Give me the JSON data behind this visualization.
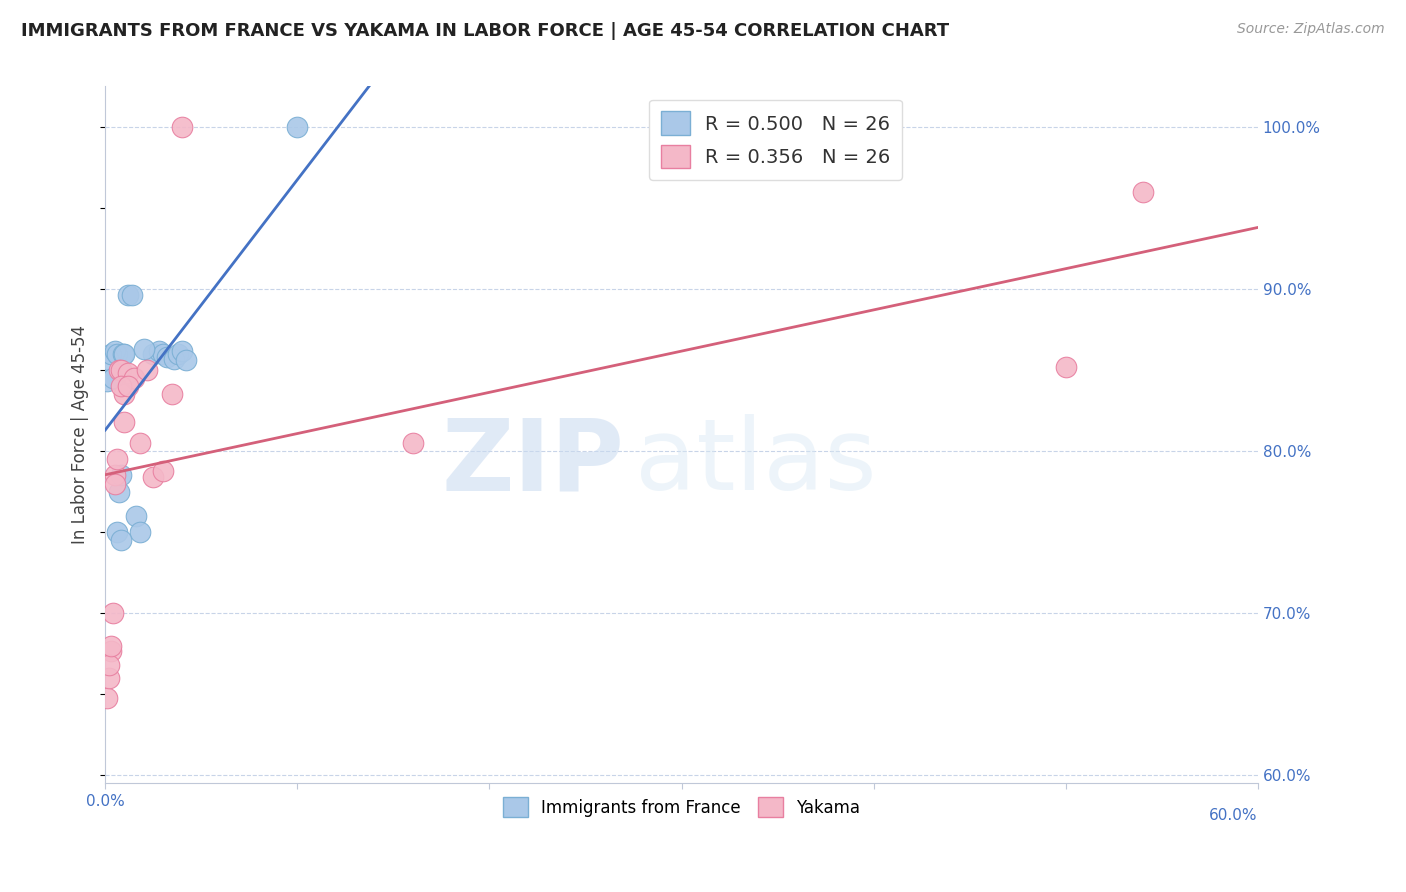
{
  "title": "IMMIGRANTS FROM FRANCE VS YAKAMA IN LABOR FORCE | AGE 45-54 CORRELATION CHART",
  "source": "Source: ZipAtlas.com",
  "ylabel": "In Labor Force | Age 45-54",
  "france_R": 0.5,
  "france_N": 26,
  "yakama_R": 0.356,
  "yakama_N": 26,
  "france_color": "#aac8e8",
  "france_edge": "#7bafd4",
  "france_line": "#4472c4",
  "yakama_color": "#f4b8c8",
  "yakama_edge": "#e87fa0",
  "yakama_line": "#d4607a",
  "watermark_zip": "ZIP",
  "watermark_atlas": "atlas",
  "background": "#ffffff",
  "grid_color": "#c8d4e8",
  "xlim": [
    0.0,
    0.6
  ],
  "ylim": [
    0.595,
    1.025
  ],
  "xticks": [
    0.0,
    0.1,
    0.2,
    0.3,
    0.4,
    0.5,
    0.6
  ],
  "yticks_right": [
    0.6,
    0.7,
    0.8,
    0.9,
    1.0
  ],
  "ytick_labels": [
    "60.0%",
    "70.0%",
    "80.0%",
    "90.0%",
    "100.0%"
  ],
  "france_x": [
    0.001,
    0.002,
    0.025,
    0.028,
    0.03,
    0.032,
    0.036,
    0.038,
    0.04,
    0.042,
    0.003,
    0.005,
    0.006,
    0.007,
    0.008,
    0.009,
    0.01,
    0.012,
    0.014,
    0.016,
    0.018,
    0.02,
    0.004,
    0.006,
    0.008,
    0.1
  ],
  "france_y": [
    0.843,
    0.856,
    0.86,
    0.862,
    0.86,
    0.858,
    0.857,
    0.86,
    0.862,
    0.856,
    0.86,
    0.862,
    0.86,
    0.775,
    0.785,
    0.86,
    0.86,
    0.896,
    0.896,
    0.76,
    0.75,
    0.863,
    0.845,
    0.75,
    0.745,
    1.0
  ],
  "yakama_x": [
    0.001,
    0.002,
    0.003,
    0.004,
    0.005,
    0.006,
    0.007,
    0.008,
    0.01,
    0.012,
    0.015,
    0.018,
    0.022,
    0.025,
    0.03,
    0.035,
    0.04,
    0.002,
    0.003,
    0.005,
    0.008,
    0.01,
    0.012,
    0.16,
    0.5,
    0.54
  ],
  "yakama_y": [
    0.648,
    0.66,
    0.677,
    0.7,
    0.785,
    0.795,
    0.85,
    0.85,
    0.835,
    0.848,
    0.845,
    0.805,
    0.85,
    0.784,
    0.788,
    0.835,
    1.0,
    0.668,
    0.68,
    0.78,
    0.84,
    0.818,
    0.84,
    0.805,
    0.852,
    0.96
  ]
}
